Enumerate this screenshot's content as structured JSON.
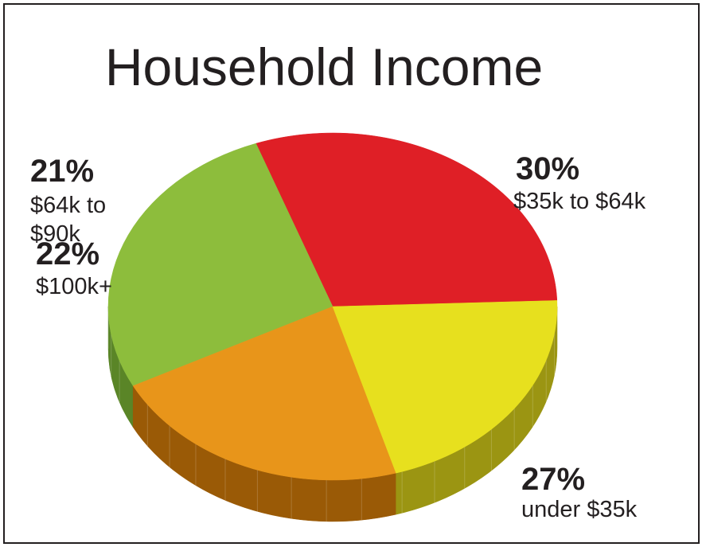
{
  "chart_data": {
    "type": "pie",
    "title": "Household Income",
    "slices": [
      {
        "percent_label": "30%",
        "label": "$35k to $64k",
        "value": 30,
        "color": "#df1f26",
        "side_color": "#8e1216"
      },
      {
        "percent_label": "27%",
        "label": "under $35k",
        "value": 27,
        "color": "#8dbd3c",
        "side_color": "#5a8527"
      },
      {
        "percent_label": "22%",
        "label": "$100k+",
        "value": 22,
        "color": "#e8951a",
        "side_color": "#9a5a06"
      },
      {
        "percent_label": "21%",
        "label": "$64k to $90k",
        "label_lines": [
          "$64k to",
          "$90k"
        ],
        "value": 21,
        "color": "#e7e01e",
        "side_color": "#9b9512"
      }
    ],
    "legend": "none",
    "style": "3d"
  }
}
